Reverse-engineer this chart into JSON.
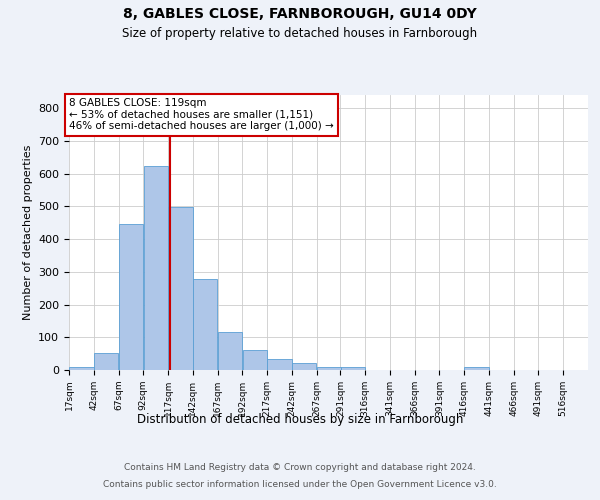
{
  "title1": "8, GABLES CLOSE, FARNBOROUGH, GU14 0DY",
  "title2": "Size of property relative to detached houses in Farnborough",
  "xlabel": "Distribution of detached houses by size in Farnborough",
  "ylabel": "Number of detached properties",
  "bar_color": "#aec6e8",
  "bar_edge_color": "#5a9fd4",
  "vline_color": "#cc0000",
  "vline_x": 119,
  "annotation_text": "8 GABLES CLOSE: 119sqm\n← 53% of detached houses are smaller (1,151)\n46% of semi-detached houses are larger (1,000) →",
  "bins": [
    17,
    42,
    67,
    92,
    117,
    142,
    167,
    192,
    217,
    242,
    267,
    291,
    316,
    341,
    366,
    391,
    416,
    441,
    466,
    491,
    516
  ],
  "counts": [
    10,
    52,
    447,
    624,
    497,
    277,
    117,
    60,
    35,
    22,
    10,
    8,
    0,
    0,
    0,
    0,
    10,
    0,
    0,
    0,
    0
  ],
  "ylim": [
    0,
    840
  ],
  "yticks": [
    0,
    100,
    200,
    300,
    400,
    500,
    600,
    700,
    800
  ],
  "footer1": "Contains HM Land Registry data © Crown copyright and database right 2024.",
  "footer2": "Contains public sector information licensed under the Open Government Licence v3.0.",
  "background_color": "#eef2f9",
  "plot_background": "#ffffff",
  "grid_color": "#cccccc"
}
